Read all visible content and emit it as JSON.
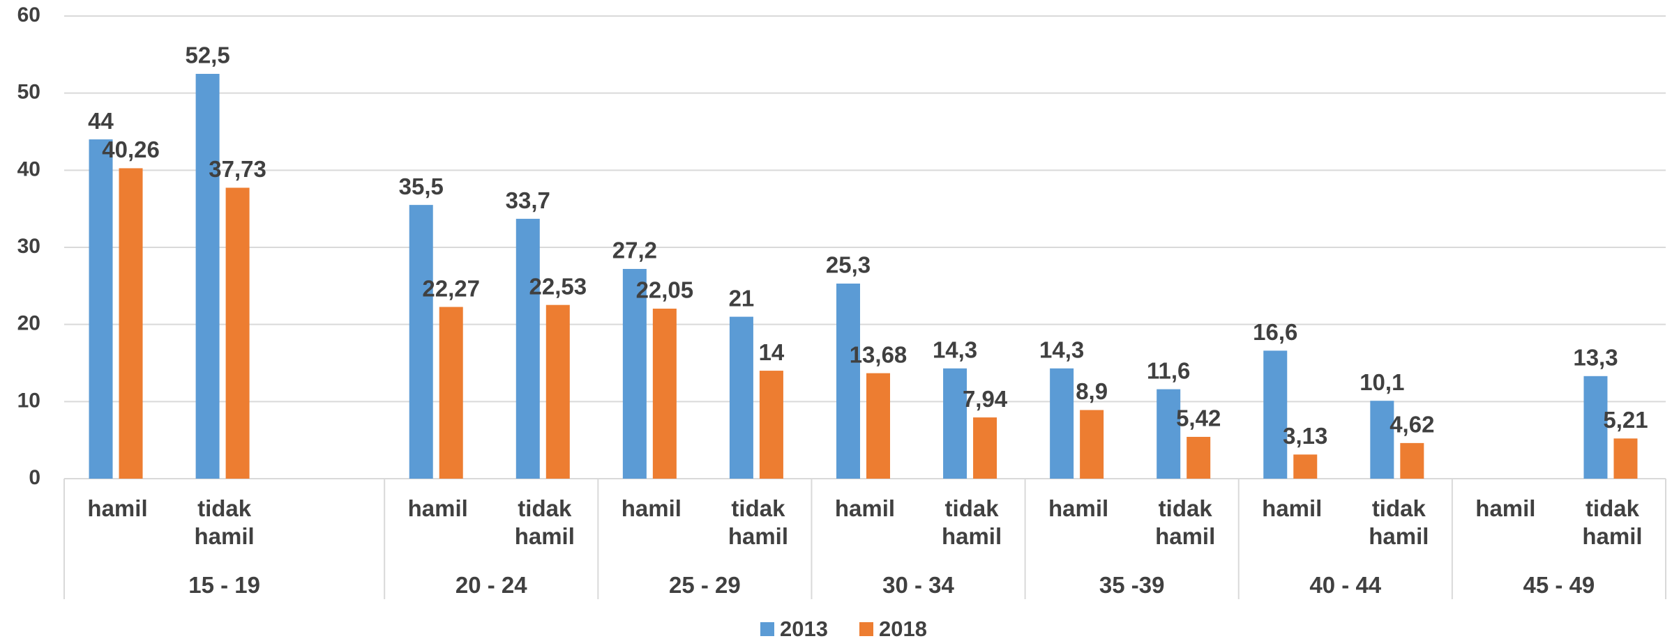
{
  "chart_data": {
    "type": "bar",
    "groups": [
      {
        "label": "15 - 19",
        "categories": [
          "hamil",
          "tidak hamil",
          null
        ]
      },
      {
        "label": "20 - 24",
        "categories": [
          "hamil",
          "tidak hamil"
        ]
      },
      {
        "label": "25 - 29",
        "categories": [
          "hamil",
          "tidak hamil"
        ]
      },
      {
        "label": "30 - 34",
        "categories": [
          "hamil",
          "tidak hamil"
        ]
      },
      {
        "label": "35 -39",
        "categories": [
          "hamil",
          "tidak hamil"
        ]
      },
      {
        "label": "40 - 44",
        "categories": [
          "hamil",
          "tidak hamil"
        ]
      },
      {
        "label": "45 - 49",
        "categories": [
          "hamil",
          "tidak hamil"
        ]
      }
    ],
    "series": [
      {
        "name": "2013",
        "color": "#5b9bd5",
        "values": [
          44,
          52.5,
          null,
          35.5,
          33.7,
          27.2,
          21,
          25.3,
          14.3,
          14.3,
          11.6,
          16.6,
          10.1,
          null,
          13.3
        ],
        "value_labels": [
          "44",
          "52,5",
          null,
          "35,5",
          "33,7",
          "27,2",
          "21",
          "25,3",
          "14,3",
          "14,3",
          "11,6",
          "16,6",
          "10,1",
          null,
          "13,3"
        ]
      },
      {
        "name": "2018",
        "color": "#ed7d31",
        "values": [
          40.26,
          37.73,
          null,
          22.27,
          22.53,
          22.05,
          14,
          13.68,
          7.94,
          8.9,
          5.42,
          3.13,
          4.62,
          null,
          5.21
        ],
        "value_labels": [
          "40,26",
          "37,73",
          null,
          "22,27",
          "22,53",
          "22,05",
          "14",
          "13,68",
          "7,94",
          "8,9",
          "5,42",
          "3,13",
          "4,62",
          null,
          "5,21"
        ]
      }
    ],
    "ylim": [
      0,
      60
    ],
    "yticks": [
      0,
      10,
      20,
      30,
      40,
      50,
      60
    ],
    "grid": true,
    "legend": "bottom"
  }
}
